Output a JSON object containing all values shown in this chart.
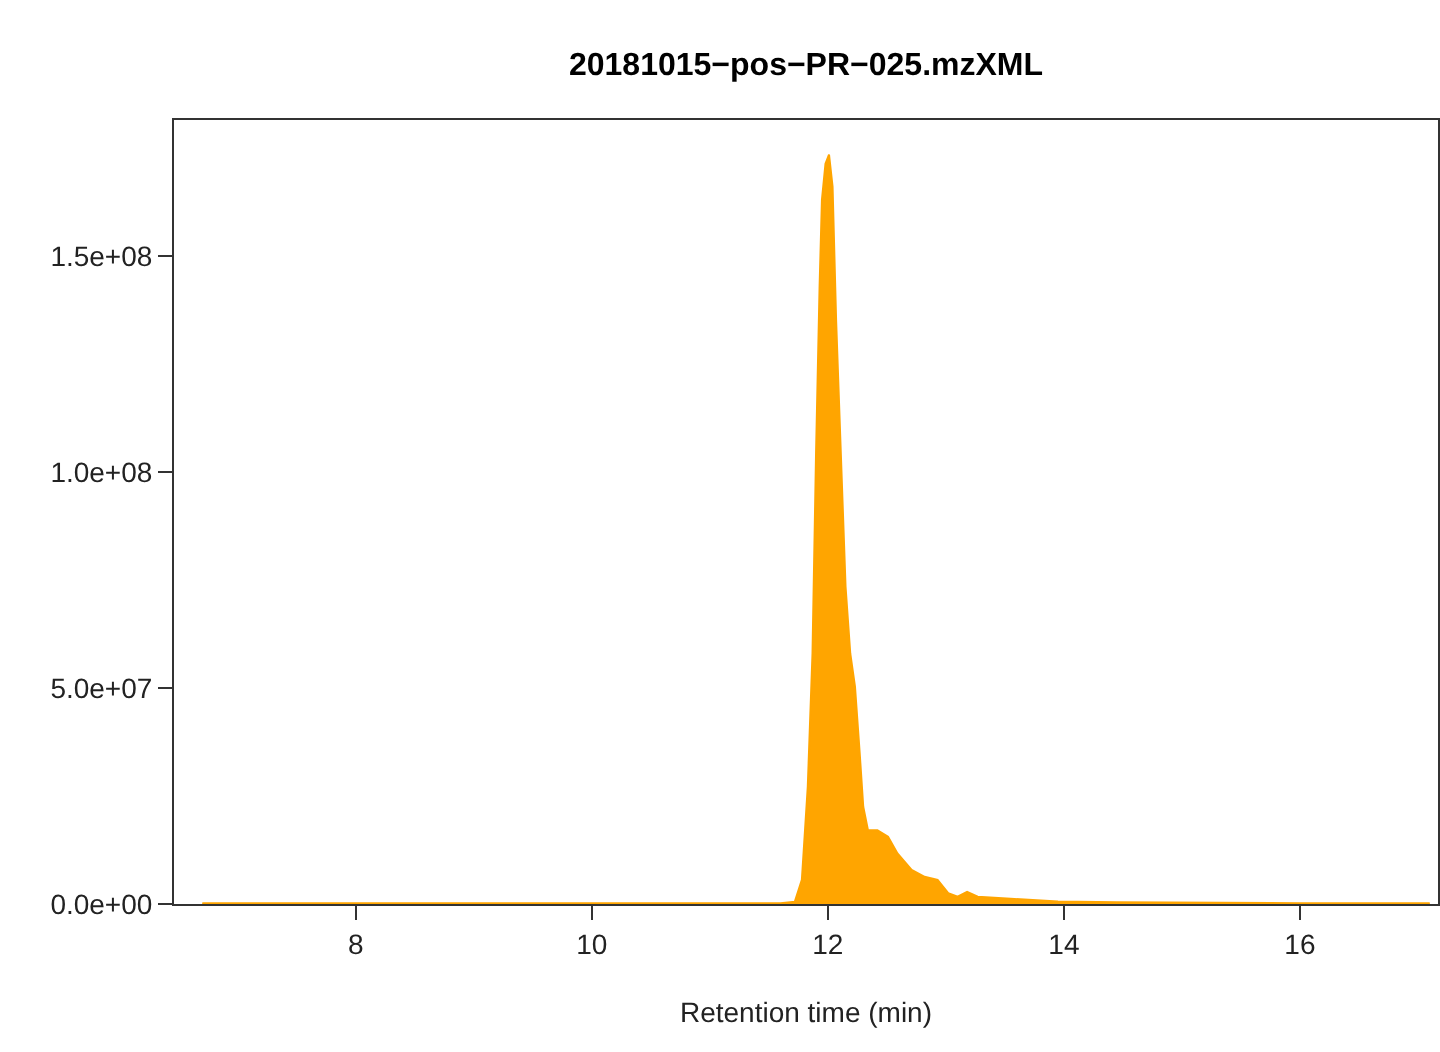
{
  "chart_data": {
    "type": "area",
    "title": "20181015−pos−PR−025.mzXML",
    "xlabel": "Retention time (min)",
    "x": [
      6.7,
      8,
      10,
      11.6,
      11.72,
      11.78,
      11.83,
      11.87,
      11.9,
      11.93,
      11.95,
      11.98,
      12.01,
      12.04,
      12.07,
      12.11,
      12.15,
      12.19,
      12.23,
      12.27,
      12.3,
      12.34,
      12.42,
      12.51,
      12.59,
      12.71,
      12.82,
      12.93,
      13.02,
      13.1,
      13.18,
      13.27,
      13.55,
      13.95,
      14.45,
      16,
      17.1
    ],
    "series": [
      {
        "color": "#ffa500",
        "values": [
          200000,
          200000,
          200000,
          200000,
          500000,
          5600000,
          27200000,
          58000000,
          104300000,
          142900000,
          163000000,
          171400000,
          173500000,
          166100000,
          135200000,
          104300000,
          73500000,
          58000000,
          50300000,
          34900000,
          22500000,
          17100000,
          17100000,
          15600000,
          11700000,
          7900000,
          6300000,
          5600000,
          2500000,
          1700000,
          2800000,
          1700000,
          1200000,
          600000,
          400000,
          200000,
          200000
        ]
      }
    ],
    "xlim": [
      6.46,
      17.17
    ],
    "xticks": [
      8,
      10,
      12,
      14,
      16
    ],
    "ylim": [
      0,
      181500000
    ],
    "yticks": [
      {
        "value": 0,
        "label": "0.0e+00"
      },
      {
        "value": 50000000,
        "label": "5.0e+07"
      },
      {
        "value": 100000000,
        "label": "1.0e+08"
      },
      {
        "value": 150000000,
        "label": "1.5e+08"
      }
    ],
    "grid": false
  }
}
